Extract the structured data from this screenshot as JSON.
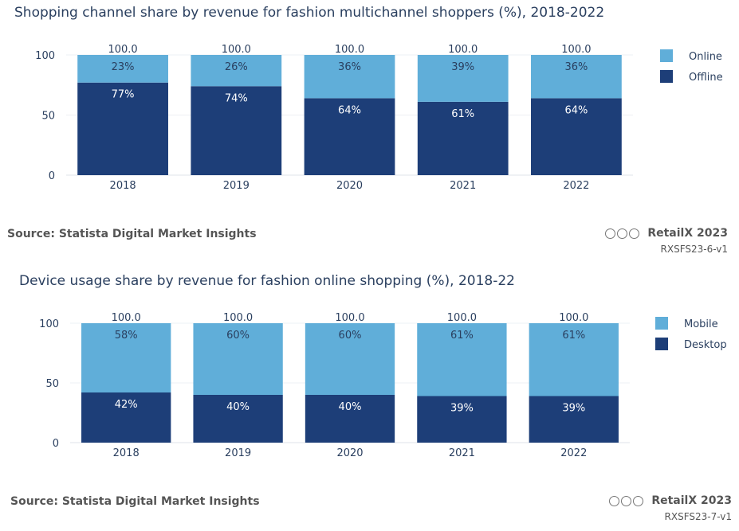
{
  "colors": {
    "light": "#60aed9",
    "dark": "#1d3e78",
    "grid": "#eef0f4",
    "axis": "#2a3f5f"
  },
  "chart_data": [
    {
      "type": "bar",
      "stacked": true,
      "title": "Shopping channel share by revenue for fashion multichannel shoppers (%), 2018-2022",
      "categories": [
        "2018",
        "2019",
        "2020",
        "2021",
        "2022"
      ],
      "ylim": [
        0,
        100
      ],
      "yticks": [
        "0",
        "50",
        "100"
      ],
      "totals": [
        "100.0",
        "100.0",
        "100.0",
        "100.0",
        "100.0"
      ],
      "series": [
        {
          "name": "Offline",
          "color": "#1d3e78",
          "values": [
            77,
            74,
            64,
            61,
            64
          ],
          "labels": [
            "77%",
            "74%",
            "64%",
            "61%",
            "64%"
          ]
        },
        {
          "name": "Online",
          "color": "#60aed9",
          "values": [
            23,
            26,
            36,
            39,
            36
          ],
          "labels": [
            "23%",
            "26%",
            "36%",
            "39%",
            "36%"
          ]
        }
      ],
      "legend": [
        "Online",
        "Offline"
      ],
      "source": "Source: Statista Digital Market Insights",
      "brand": "RetailX 2023",
      "code": "RXSFS23-6-v1"
    },
    {
      "type": "bar",
      "stacked": true,
      "title": "Device usage share by revenue for fashion online shopping (%), 2018-22",
      "categories": [
        "2018",
        "2019",
        "2020",
        "2021",
        "2022"
      ],
      "ylim": [
        0,
        100
      ],
      "yticks": [
        "0",
        "50",
        "100"
      ],
      "totals": [
        "100.0",
        "100.0",
        "100.0",
        "100.0",
        "100.0"
      ],
      "series": [
        {
          "name": "Desktop",
          "color": "#1d3e78",
          "values": [
            42,
            40,
            40,
            39,
            39
          ],
          "labels": [
            "42%",
            "40%",
            "40%",
            "39%",
            "39%"
          ]
        },
        {
          "name": "Mobile",
          "color": "#60aed9",
          "values": [
            58,
            60,
            60,
            61,
            61
          ],
          "labels": [
            "58%",
            "60%",
            "60%",
            "61%",
            "61%"
          ]
        }
      ],
      "legend": [
        "Mobile",
        "Desktop"
      ],
      "source": "Source: Statista Digital Market Insights",
      "brand": "RetailX 2023",
      "code": "RXSFS23-7-v1"
    }
  ]
}
